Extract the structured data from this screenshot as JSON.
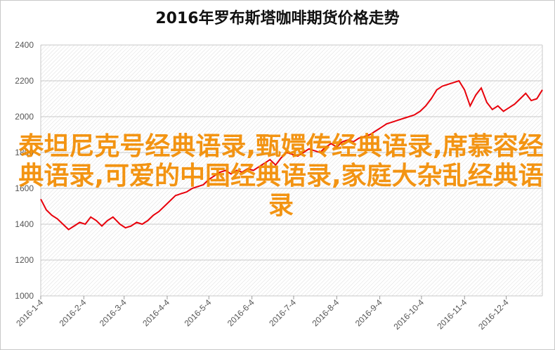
{
  "chart_data": {
    "type": "line",
    "title": "2016年罗布斯塔咖啡期货价格走势",
    "ylim": [
      1000,
      2400
    ],
    "yticks": [
      "1000",
      "1200",
      "1400",
      "1600",
      "1800",
      "2000",
      "2200",
      "2400"
    ],
    "xticks": [
      "2016-1-4",
      "2016-2-4",
      "2016-3-4",
      "2016-4-4",
      "2016-5-4",
      "2016-6-4",
      "2016-7-4",
      "2016-8-4",
      "2016-9-4",
      "2016-10-4",
      "2016-11-4",
      "2016-12-4"
    ],
    "grid": true,
    "series": [
      {
        "color": "#e8000b",
        "x": [
          "2016-1-4",
          "2016-1-8",
          "2016-1-12",
          "2016-1-16",
          "2016-1-20",
          "2016-1-24",
          "2016-1-28",
          "2016-2-1",
          "2016-2-5",
          "2016-2-9",
          "2016-2-13",
          "2016-2-17",
          "2016-2-21",
          "2016-2-25",
          "2016-3-1",
          "2016-3-5",
          "2016-3-9",
          "2016-3-13",
          "2016-3-17",
          "2016-3-21",
          "2016-3-25",
          "2016-3-29",
          "2016-4-2",
          "2016-4-6",
          "2016-4-10",
          "2016-4-14",
          "2016-4-18",
          "2016-4-22",
          "2016-4-26",
          "2016-4-30",
          "2016-5-4",
          "2016-5-8",
          "2016-5-12",
          "2016-5-16",
          "2016-5-20",
          "2016-5-24",
          "2016-5-28",
          "2016-6-1",
          "2016-6-5",
          "2016-6-9",
          "2016-6-13",
          "2016-6-17",
          "2016-6-21",
          "2016-6-25",
          "2016-6-29",
          "2016-7-3",
          "2016-7-7",
          "2016-7-11",
          "2016-7-15",
          "2016-7-19",
          "2016-7-23",
          "2016-7-27",
          "2016-7-31",
          "2016-8-4",
          "2016-8-8",
          "2016-8-12",
          "2016-8-16",
          "2016-8-20",
          "2016-8-24",
          "2016-8-28",
          "2016-9-1",
          "2016-9-5",
          "2016-9-9",
          "2016-9-13",
          "2016-9-17",
          "2016-9-21",
          "2016-9-25",
          "2016-9-29",
          "2016-10-3",
          "2016-10-7",
          "2016-10-11",
          "2016-10-15",
          "2016-10-19",
          "2016-10-23",
          "2016-10-27",
          "2016-10-31",
          "2016-11-4",
          "2016-11-8",
          "2016-11-12",
          "2016-11-16",
          "2016-11-20",
          "2016-11-24",
          "2016-11-28",
          "2016-12-2",
          "2016-12-6",
          "2016-12-10",
          "2016-12-14",
          "2016-12-18",
          "2016-12-22",
          "2016-12-26",
          "2016-12-30"
        ],
        "values": [
          1540,
          1480,
          1450,
          1430,
          1400,
          1370,
          1390,
          1410,
          1400,
          1440,
          1420,
          1390,
          1420,
          1440,
          1400,
          1380,
          1390,
          1410,
          1400,
          1420,
          1450,
          1470,
          1500,
          1530,
          1560,
          1570,
          1580,
          1600,
          1610,
          1620,
          1650,
          1670,
          1690,
          1700,
          1680,
          1700,
          1690,
          1710,
          1700,
          1720,
          1740,
          1760,
          1730,
          1770,
          1800,
          1790,
          1780,
          1800,
          1820,
          1810,
          1800,
          1830,
          1850,
          1830,
          1860,
          1870,
          1860,
          1880,
          1890,
          1900,
          1920,
          1940,
          1960,
          1970,
          1980,
          1990,
          2000,
          2010,
          2030,
          2060,
          2100,
          2150,
          2170,
          2180,
          2190,
          2200,
          2150,
          2060,
          2120,
          2160,
          2080,
          2040,
          2060,
          2030,
          2050,
          2070,
          2100,
          2130,
          2090,
          2100,
          2150
        ]
      }
    ]
  },
  "overlay_text": "泰坦尼克号经典语录,甄嬛传经典语录,席慕容经典语录,可爱的中国经典语录,家庭大杂乱经典语录"
}
